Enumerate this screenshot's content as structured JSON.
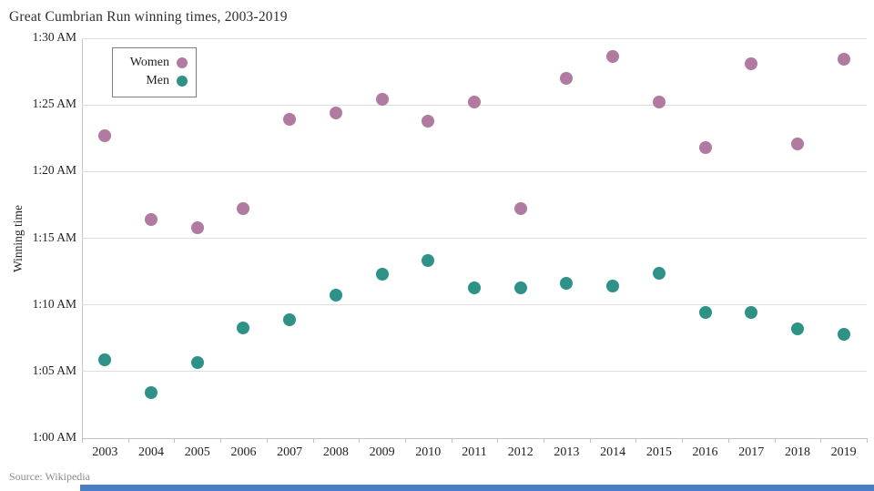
{
  "title": "Great Cumbrian Run winning times, 2003-2019",
  "source": "Source: Wikipedia",
  "colors": {
    "women": "#b07aa1",
    "men": "#2f9287",
    "gridline": "#dedede",
    "axis_line": "#c6c6c6",
    "bottom_bar": "#4b7fc1"
  },
  "chart_data": {
    "type": "scatter",
    "title": "Great Cumbrian Run winning times, 2003-2019",
    "xlabel": "",
    "ylabel": "Winning time",
    "categories": [
      "2003",
      "2004",
      "2005",
      "2006",
      "2007",
      "2008",
      "2009",
      "2010",
      "2011",
      "2012",
      "2013",
      "2014",
      "2015",
      "2016",
      "2017",
      "2018",
      "2019"
    ],
    "y_unit": "minutes after 1:00 AM",
    "ylim": [
      0,
      30
    ],
    "grid": "horizontal",
    "legend_position": "top-left-inside",
    "y_ticks": [
      {
        "value": 0,
        "label": "1:00 AM"
      },
      {
        "value": 5,
        "label": "1:05 AM"
      },
      {
        "value": 10,
        "label": "1:10 AM"
      },
      {
        "value": 15,
        "label": "1:15 AM"
      },
      {
        "value": 20,
        "label": "1:20 AM"
      },
      {
        "value": 25,
        "label": "1:25 AM"
      },
      {
        "value": 30,
        "label": "1:30 AM"
      }
    ],
    "series": [
      {
        "name": "Women",
        "color_key": "women",
        "values": [
          22.7,
          16.4,
          15.8,
          17.2,
          23.9,
          24.4,
          25.4,
          23.8,
          25.2,
          17.2,
          27.0,
          28.6,
          25.2,
          21.8,
          28.1,
          22.1,
          28.4
        ]
      },
      {
        "name": "Men",
        "color_key": "men",
        "values": [
          5.9,
          3.4,
          5.7,
          8.3,
          8.9,
          10.7,
          12.3,
          13.3,
          11.3,
          11.3,
          11.6,
          11.4,
          12.4,
          9.4,
          9.4,
          8.2,
          7.8
        ]
      }
    ]
  }
}
